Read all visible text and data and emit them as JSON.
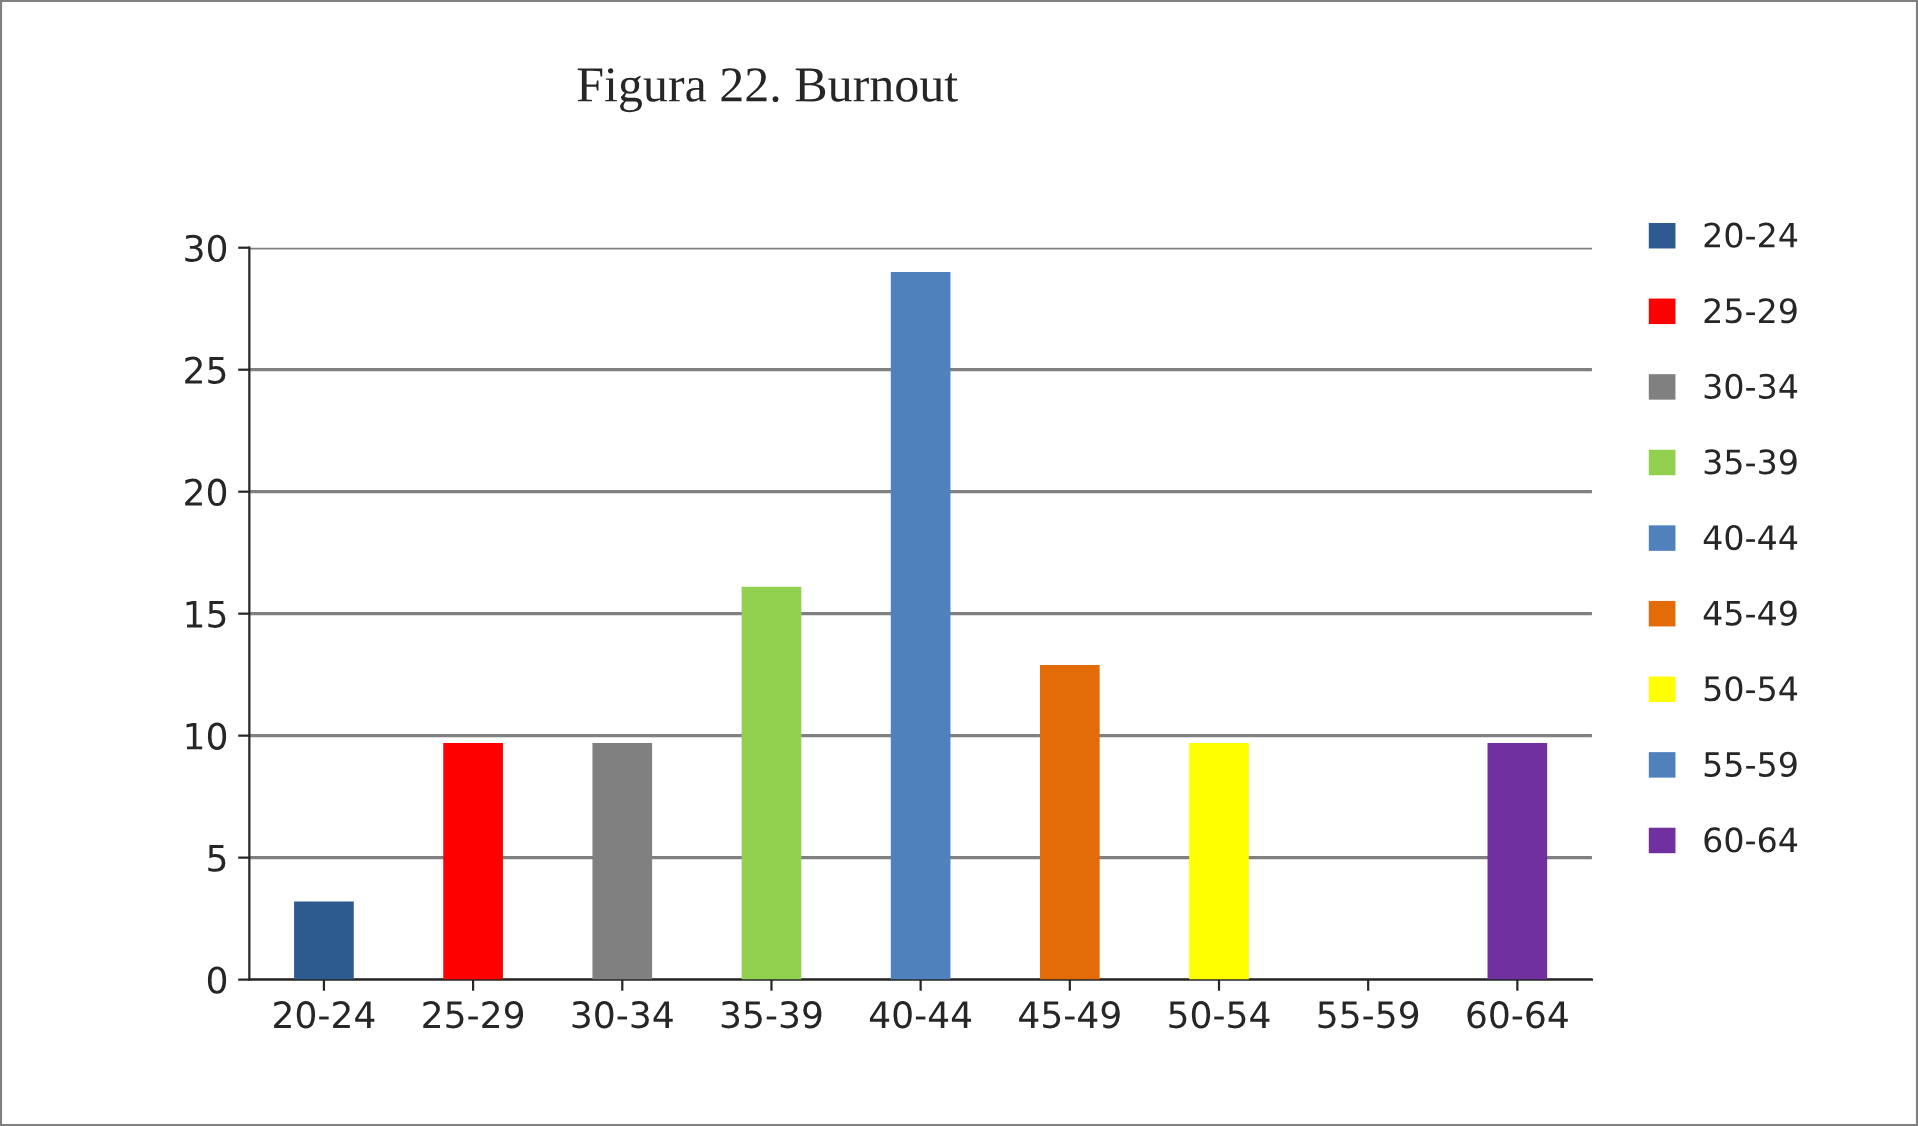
{
  "chart_data": {
    "type": "bar",
    "title": "Figura 22. Burnout",
    "categories": [
      "20-24",
      "25-29",
      "30-34",
      "35-39",
      "40-44",
      "45-49",
      "50-54",
      "55-59",
      "60-64"
    ],
    "series": [
      {
        "name": "20-24",
        "color": "#2e5b8f",
        "values": [
          3.2,
          null,
          null,
          null,
          null,
          null,
          null,
          null,
          null
        ]
      },
      {
        "name": "25-29",
        "color": "#ff0000",
        "values": [
          null,
          9.7,
          null,
          null,
          null,
          null,
          null,
          null,
          null
        ]
      },
      {
        "name": "30-34",
        "color": "#808080",
        "values": [
          null,
          null,
          9.7,
          null,
          null,
          null,
          null,
          null,
          null
        ]
      },
      {
        "name": "35-39",
        "color": "#92d050",
        "values": [
          null,
          null,
          null,
          16.1,
          null,
          null,
          null,
          null,
          null
        ]
      },
      {
        "name": "40-44",
        "color": "#4f81bd",
        "values": [
          null,
          null,
          null,
          null,
          29,
          null,
          null,
          null,
          null
        ]
      },
      {
        "name": "45-49",
        "color": "#e36c09",
        "values": [
          null,
          null,
          null,
          null,
          null,
          12.9,
          null,
          null,
          null
        ]
      },
      {
        "name": "50-54",
        "color": "#ffff00",
        "values": [
          null,
          null,
          null,
          null,
          null,
          null,
          9.7,
          null,
          null
        ]
      },
      {
        "name": "55-59",
        "color": "#4f81bd",
        "values": [
          null,
          null,
          null,
          null,
          null,
          null,
          null,
          0,
          null
        ]
      },
      {
        "name": "60-64",
        "color": "#7030a0",
        "values": [
          null,
          null,
          null,
          null,
          null,
          null,
          null,
          null,
          9.7
        ]
      }
    ],
    "ylim": [
      0,
      30
    ],
    "yticks": [
      0,
      5,
      10,
      15,
      20,
      25,
      30
    ],
    "grid": "y",
    "legend": "right"
  }
}
